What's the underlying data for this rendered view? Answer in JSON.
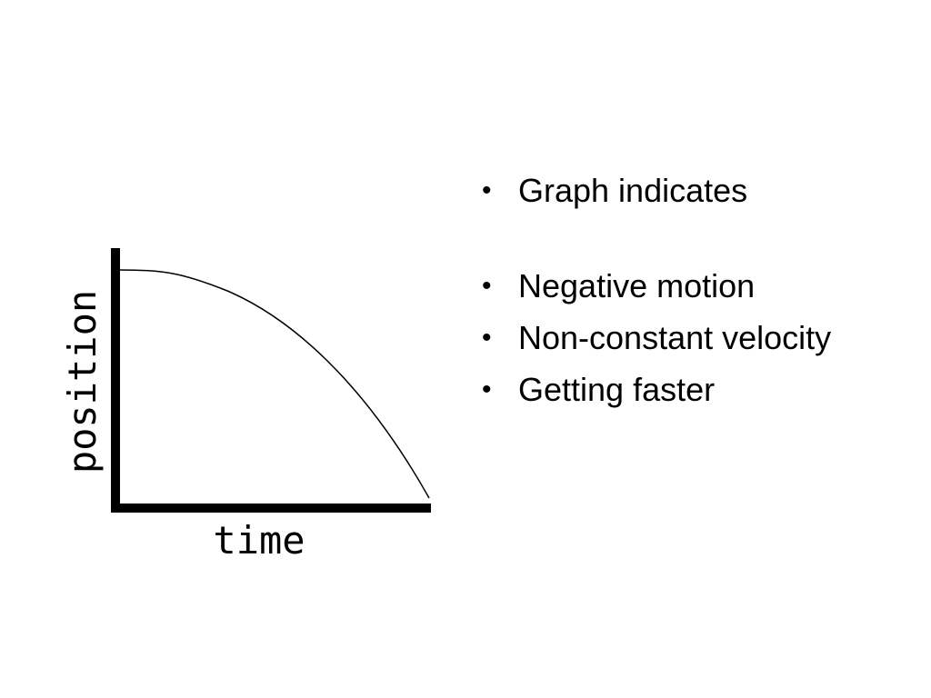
{
  "graph": {
    "y_label": "position",
    "x_label": "time",
    "curve_description_color": "#000000"
  },
  "bullets": [
    {
      "text": "Graph indicates"
    },
    {
      "text": "Negative motion"
    },
    {
      "text": "Non-constant velocity"
    },
    {
      "text": "Getting faster"
    }
  ],
  "bullet_symbol": "•"
}
